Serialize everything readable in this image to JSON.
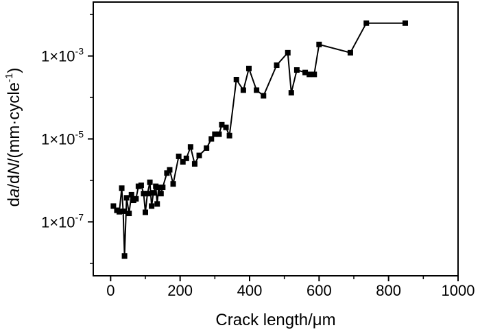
{
  "chart_data": {
    "type": "line",
    "title": "",
    "xlabel": "Crack length/μm",
    "ylabel_parts": {
      "p1": "d",
      "p2": "a",
      "p3": "/d",
      "p4": "N",
      "p5": "/(mm·cycle",
      "p6": "-1",
      "p7": ")"
    },
    "x_ticks": [
      {
        "value": 0,
        "label": "0"
      },
      {
        "value": 200,
        "label": "200"
      },
      {
        "value": 400,
        "label": "400"
      },
      {
        "value": 600,
        "label": "600"
      },
      {
        "value": 800,
        "label": "800"
      },
      {
        "value": 1000,
        "label": "1000"
      }
    ],
    "y_ticks": [
      {
        "value": 0.001,
        "base": "1×10",
        "exp": "-3"
      },
      {
        "value": 1e-05,
        "base": "1×10",
        "exp": "-5"
      },
      {
        "value": 1e-07,
        "base": "1×10",
        "exp": "-7"
      }
    ],
    "y_minor_ticks": [
      0.01,
      0.0001,
      1e-06,
      1e-08
    ],
    "xlim": [
      -50,
      1000
    ],
    "ylim": [
      5e-09,
      0.02
    ],
    "yscale": "log",
    "grid": false,
    "marker": "square",
    "color": "#000000",
    "series": [
      {
        "points": [
          [
            8,
            2.4e-07
          ],
          [
            18,
            1.9e-07
          ],
          [
            25,
            1.75e-07
          ],
          [
            32,
            6.5e-07
          ],
          [
            36,
            1.8e-07
          ],
          [
            40,
            1.5e-08
          ],
          [
            46,
            3.8e-07
          ],
          [
            53,
            1.6e-07
          ],
          [
            60,
            4.5e-07
          ],
          [
            66,
            3.3e-07
          ],
          [
            73,
            3.6e-07
          ],
          [
            80,
            7.2e-07
          ],
          [
            88,
            7.6e-07
          ],
          [
            95,
            4.8e-07
          ],
          [
            100,
            1.7e-07
          ],
          [
            106,
            4.8e-07
          ],
          [
            113,
            9e-07
          ],
          [
            118,
            2.4e-07
          ],
          [
            123,
            5e-07
          ],
          [
            130,
            7.2e-07
          ],
          [
            134,
            2.7e-07
          ],
          [
            138,
            6.8e-07
          ],
          [
            145,
            4.8e-07
          ],
          [
            150,
            6.8e-07
          ],
          [
            162,
            1.5e-06
          ],
          [
            170,
            1.8e-06
          ],
          [
            180,
            8.2e-07
          ],
          [
            196,
            3.8e-06
          ],
          [
            208,
            2.8e-06
          ],
          [
            218,
            3.4e-06
          ],
          [
            230,
            6.4e-06
          ],
          [
            242,
            2.5e-06
          ],
          [
            255,
            4e-06
          ],
          [
            276,
            6e-06
          ],
          [
            290,
            1e-05
          ],
          [
            300,
            1.3e-05
          ],
          [
            312,
            1.3e-05
          ],
          [
            320,
            2.2e-05
          ],
          [
            332,
            1.9e-05
          ],
          [
            342,
            1.2e-05
          ],
          [
            362,
            0.00027
          ],
          [
            382,
            0.00015
          ],
          [
            398,
            0.0005
          ],
          [
            420,
            0.00015
          ],
          [
            440,
            0.00011
          ],
          [
            478,
            0.0006
          ],
          [
            510,
            0.0012
          ],
          [
            520,
            0.00013
          ],
          [
            536,
            0.00046
          ],
          [
            560,
            0.0004
          ],
          [
            572,
            0.00036
          ],
          [
            586,
            0.00036
          ],
          [
            600,
            0.0019
          ],
          [
            690,
            0.0012
          ],
          [
            736,
            0.0062
          ],
          [
            848,
            0.0062
          ]
        ]
      }
    ]
  }
}
